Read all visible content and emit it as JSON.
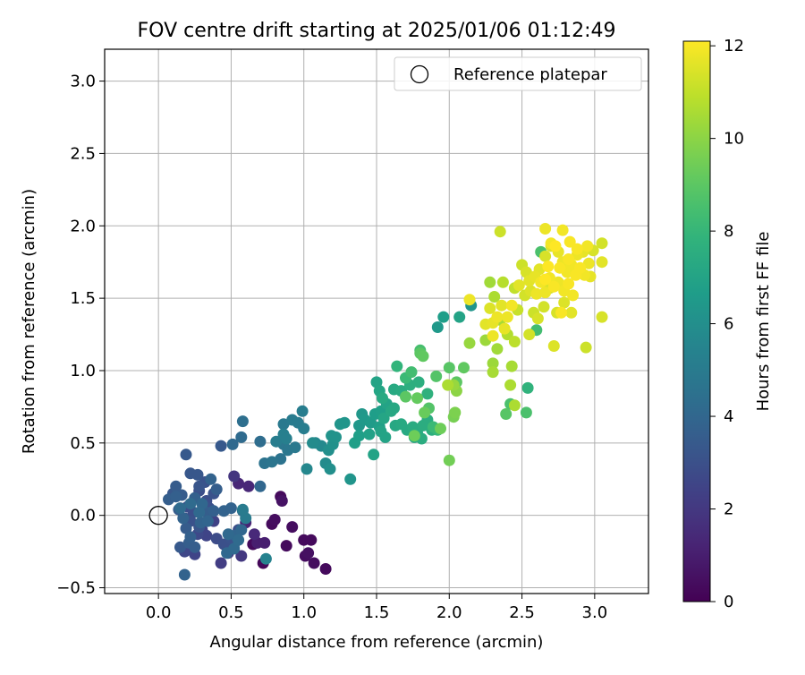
{
  "chart_data": {
    "type": "scatter",
    "title": "FOV centre drift starting at 2025/01/06 01:12:49",
    "xlabel": "Angular distance from reference (arcmin)",
    "ylabel": "Rotation from reference (arcmin)",
    "xlim": [
      -0.37,
      3.37
    ],
    "ylim": [
      -0.54,
      3.22
    ],
    "x_ticks": [
      0.0,
      0.5,
      1.0,
      1.5,
      2.0,
      2.5,
      3.0
    ],
    "x_tick_labels": [
      "0.0",
      "0.5",
      "1.0",
      "1.5",
      "2.0",
      "2.5",
      "3.0"
    ],
    "y_ticks": [
      -0.5,
      0.0,
      0.5,
      1.0,
      1.5,
      2.0,
      2.5,
      3.0
    ],
    "y_tick_labels": [
      "−0.5",
      "0.0",
      "0.5",
      "1.0",
      "1.5",
      "2.0",
      "2.5",
      "3.0"
    ],
    "grid": true,
    "legend": {
      "position": "top-right",
      "entries": [
        "Reference platepar"
      ]
    },
    "reference": {
      "label": "Reference platepar",
      "x": 0.0,
      "y": 0.0
    },
    "colorbar": {
      "label": "Hours from first FF file",
      "colormap": "viridis",
      "range": [
        0,
        12.1
      ],
      "ticks": [
        0,
        2,
        4,
        6,
        8,
        10,
        12
      ],
      "tick_labels": [
        "0",
        "2",
        "4",
        "6",
        "8",
        "10",
        "12"
      ]
    },
    "points": [
      [
        0.65,
        -0.2,
        0.3
      ],
      [
        0.72,
        -0.33,
        0.2
      ],
      [
        0.84,
        0.13,
        0.3
      ],
      [
        0.78,
        -0.06,
        0.3
      ],
      [
        0.8,
        -0.03,
        0.4
      ],
      [
        0.88,
        -0.21,
        0.3
      ],
      [
        0.92,
        -0.08,
        0.4
      ],
      [
        1.0,
        -0.17,
        0.3
      ],
      [
        1.05,
        -0.17,
        0.3
      ],
      [
        1.01,
        -0.28,
        0.4
      ],
      [
        1.03,
        -0.26,
        0.5
      ],
      [
        1.07,
        -0.33,
        0.4
      ],
      [
        1.15,
        -0.37,
        0.3
      ],
      [
        0.85,
        0.1,
        0.6
      ],
      [
        0.6,
        -0.05,
        1.2
      ],
      [
        0.55,
        0.22,
        1.3
      ],
      [
        0.62,
        0.2,
        1.3
      ],
      [
        0.68,
        -0.19,
        1.0
      ],
      [
        0.73,
        -0.19,
        1.0
      ],
      [
        0.66,
        -0.13,
        1.4
      ],
      [
        0.52,
        0.27,
        1.9
      ],
      [
        0.57,
        -0.28,
        2.0
      ],
      [
        0.43,
        -0.33,
        2.2
      ],
      [
        0.48,
        -0.26,
        2.1
      ],
      [
        0.25,
        -0.27,
        2.5
      ],
      [
        0.18,
        -0.25,
        2.6
      ],
      [
        0.3,
        -0.1,
        2.4
      ],
      [
        0.38,
        -0.04,
        2.4
      ],
      [
        0.33,
        -0.14,
        2.5
      ],
      [
        0.27,
        -0.13,
        2.7
      ],
      [
        0.4,
        -0.16,
        2.8
      ],
      [
        0.45,
        -0.2,
        3.0
      ],
      [
        0.5,
        -0.16,
        3.1
      ],
      [
        0.55,
        -0.1,
        3.0
      ],
      [
        0.52,
        -0.2,
        2.9
      ],
      [
        0.28,
        0.17,
        2.9
      ],
      [
        0.33,
        0.1,
        2.9
      ],
      [
        0.24,
        0.02,
        2.9
      ],
      [
        0.2,
        0.06,
        2.8
      ],
      [
        0.18,
        -0.02,
        3.0
      ],
      [
        0.22,
        -0.04,
        3.1
      ],
      [
        0.28,
        -0.08,
        3.2
      ],
      [
        0.35,
        0.05,
        3.0
      ],
      [
        0.38,
        0.15,
        3.1
      ],
      [
        0.32,
        0.23,
        3.1
      ],
      [
        0.27,
        0.28,
        3.3
      ],
      [
        0.22,
        0.29,
        3.3
      ],
      [
        0.19,
        0.42,
        3.4
      ],
      [
        0.43,
        0.48,
        3.4
      ],
      [
        0.28,
        0.2,
        3.2
      ],
      [
        0.1,
        0.15,
        3.3
      ],
      [
        0.07,
        0.11,
        3.6
      ],
      [
        0.12,
        0.2,
        3.5
      ],
      [
        0.16,
        0.14,
        3.5
      ],
      [
        0.14,
        0.04,
        3.5
      ],
      [
        0.19,
        -0.09,
        3.5
      ],
      [
        0.15,
        -0.22,
        3.4
      ],
      [
        0.21,
        -0.19,
        3.6
      ],
      [
        0.25,
        -0.22,
        3.6
      ],
      [
        0.33,
        0.02,
        3.6
      ],
      [
        0.38,
        0.03,
        3.7
      ],
      [
        0.4,
        0.18,
        3.6
      ],
      [
        0.36,
        0.25,
        3.8
      ],
      [
        0.25,
        0.12,
        3.7
      ],
      [
        0.12,
        0.13,
        3.7
      ],
      [
        0.17,
        -0.02,
        3.8
      ],
      [
        0.22,
        -0.15,
        3.7
      ],
      [
        0.29,
        -0.05,
        3.8
      ],
      [
        0.45,
        0.03,
        3.8
      ],
      [
        0.5,
        0.05,
        3.8
      ],
      [
        0.53,
        -0.14,
        3.9
      ],
      [
        0.57,
        -0.1,
        4.0
      ],
      [
        0.48,
        -0.13,
        4.1
      ],
      [
        0.58,
        0.03,
        4.2
      ],
      [
        0.55,
        -0.17,
        4.2
      ],
      [
        0.52,
        -0.23,
        4.1
      ],
      [
        0.47,
        -0.26,
        4.0
      ],
      [
        0.18,
        -0.41,
        3.8
      ],
      [
        0.3,
        0.08,
        4.0
      ],
      [
        0.22,
        0.08,
        4.2
      ],
      [
        0.15,
        0.05,
        4.2
      ],
      [
        0.28,
        0.02,
        4.1
      ],
      [
        0.34,
        -0.04,
        3.9
      ],
      [
        0.7,
        0.2,
        4.0
      ],
      [
        0.51,
        0.49,
        4.1
      ],
      [
        0.57,
        0.54,
        4.2
      ],
      [
        0.7,
        0.51,
        4.3
      ],
      [
        0.58,
        0.65,
        4.4
      ],
      [
        0.73,
        0.36,
        4.6
      ],
      [
        0.78,
        0.37,
        4.7
      ],
      [
        0.84,
        0.39,
        4.6
      ],
      [
        0.86,
        0.49,
        4.8
      ],
      [
        0.89,
        0.45,
        4.8
      ],
      [
        0.94,
        0.47,
        4.9
      ],
      [
        0.86,
        0.63,
        4.9
      ],
      [
        0.92,
        0.66,
        5.0
      ],
      [
        0.96,
        0.64,
        5.0
      ],
      [
        0.99,
        0.72,
        5.1
      ],
      [
        1.0,
        0.6,
        5.1
      ],
      [
        0.86,
        0.56,
        5.2
      ],
      [
        0.81,
        0.51,
        5.1
      ],
      [
        0.6,
        -0.02,
        5.0
      ],
      [
        0.58,
        0.04,
        5.0
      ],
      [
        0.74,
        -0.3,
        5.4
      ],
      [
        0.88,
        0.53,
        5.2
      ],
      [
        1.02,
        0.32,
        5.6
      ],
      [
        1.08,
        0.5,
        5.6
      ],
      [
        1.12,
        0.48,
        5.7
      ],
      [
        1.06,
        0.5,
        5.8
      ],
      [
        1.15,
        0.36,
        5.8
      ],
      [
        1.18,
        0.32,
        6.0
      ],
      [
        1.17,
        0.45,
        6.0
      ],
      [
        1.2,
        0.49,
        6.1
      ],
      [
        1.19,
        0.55,
        6.2
      ],
      [
        1.22,
        0.54,
        6.2
      ],
      [
        1.25,
        0.63,
        6.3
      ],
      [
        1.28,
        0.64,
        6.3
      ],
      [
        1.32,
        0.25,
        6.3
      ],
      [
        1.38,
        0.62,
        6.4
      ],
      [
        1.4,
        0.7,
        6.4
      ],
      [
        1.42,
        0.66,
        6.5
      ],
      [
        1.46,
        0.64,
        6.6
      ],
      [
        1.49,
        0.7,
        6.7
      ],
      [
        1.52,
        0.61,
        6.8
      ],
      [
        1.35,
        0.5,
        6.8
      ],
      [
        1.38,
        0.55,
        6.8
      ],
      [
        1.45,
        0.56,
        6.9
      ],
      [
        1.48,
        0.42,
        7.0
      ],
      [
        1.53,
        0.58,
        7.0
      ],
      [
        1.56,
        0.54,
        7.0
      ],
      [
        1.55,
        0.67,
        7.1
      ],
      [
        1.6,
        0.72,
        7.2
      ],
      [
        1.63,
        0.62,
        7.2
      ],
      [
        1.67,
        0.63,
        7.3
      ],
      [
        1.71,
        0.59,
        7.3
      ],
      [
        1.75,
        0.61,
        7.4
      ],
      [
        1.78,
        0.57,
        7.4
      ],
      [
        1.82,
        0.62,
        7.5
      ],
      [
        1.85,
        0.66,
        7.5
      ],
      [
        1.88,
        0.59,
        7.6
      ],
      [
        1.81,
        0.53,
        7.5
      ],
      [
        1.76,
        0.54,
        7.3
      ],
      [
        1.53,
        0.72,
        6.8
      ],
      [
        1.57,
        0.77,
        7.0
      ],
      [
        1.62,
        0.74,
        7.2
      ],
      [
        1.62,
        0.87,
        7.3
      ],
      [
        1.67,
        0.86,
        7.4
      ],
      [
        1.73,
        0.9,
        7.6
      ],
      [
        1.79,
        0.92,
        7.6
      ],
      [
        1.85,
        0.84,
        7.7
      ],
      [
        1.64,
        1.03,
        7.9
      ],
      [
        1.92,
        0.59,
        8.1
      ],
      [
        1.89,
        0.61,
        8.2
      ],
      [
        1.5,
        0.92,
        7.0
      ],
      [
        1.52,
        0.86,
        7.1
      ],
      [
        1.54,
        0.81,
        7.3
      ],
      [
        1.92,
        1.3,
        6.5
      ],
      [
        1.96,
        1.37,
        6.7
      ],
      [
        2.07,
        1.37,
        7.0
      ],
      [
        2.15,
        1.45,
        6.3
      ],
      [
        2.54,
        0.88,
        7.8
      ],
      [
        2.42,
        0.77,
        8.6
      ],
      [
        2.39,
        0.7,
        8.9
      ],
      [
        2.53,
        0.71,
        8.6
      ],
      [
        2.6,
        1.28,
        8.4
      ],
      [
        2.63,
        1.82,
        8.6
      ],
      [
        1.7,
        0.95,
        8.2
      ],
      [
        1.74,
        0.99,
        8.4
      ],
      [
        1.8,
        1.14,
        8.5
      ],
      [
        1.86,
        0.74,
        8.8
      ],
      [
        1.91,
        0.96,
        8.8
      ],
      [
        2.0,
        1.02,
        8.9
      ],
      [
        2.05,
        0.92,
        9.0
      ],
      [
        2.1,
        1.02,
        9.1
      ],
      [
        1.8,
        1.12,
        9.0
      ],
      [
        1.82,
        1.1,
        9.1
      ],
      [
        1.7,
        0.82,
        9.0
      ],
      [
        1.78,
        0.81,
        9.2
      ],
      [
        1.83,
        0.71,
        9.3
      ],
      [
        1.94,
        0.6,
        9.4
      ],
      [
        1.76,
        0.55,
        9.4
      ],
      [
        2.0,
        0.38,
        9.5
      ],
      [
        2.03,
        0.68,
        9.6
      ],
      [
        2.04,
        0.71,
        9.7
      ],
      [
        2.05,
        0.86,
        10.0
      ],
      [
        2.03,
        0.9,
        10.2
      ],
      [
        1.99,
        0.9,
        10.6
      ],
      [
        2.14,
        1.19,
        10.2
      ],
      [
        2.25,
        1.21,
        10.3
      ],
      [
        2.3,
        1.05,
        10.3
      ],
      [
        2.3,
        0.99,
        10.5
      ],
      [
        2.33,
        1.15,
        10.4
      ],
      [
        2.35,
        1.35,
        10.5
      ],
      [
        2.4,
        1.25,
        10.7
      ],
      [
        2.42,
        0.9,
        10.6
      ],
      [
        2.43,
        1.03,
        10.5
      ],
      [
        2.45,
        0.76,
        10.6
      ],
      [
        2.45,
        1.2,
        10.9
      ],
      [
        2.28,
        1.61,
        10.4
      ],
      [
        2.31,
        1.51,
        10.6
      ],
      [
        2.37,
        1.61,
        10.8
      ],
      [
        2.35,
        1.96,
        11.2
      ],
      [
        2.45,
        1.57,
        11.0
      ],
      [
        2.47,
        1.42,
        11.1
      ],
      [
        2.52,
        1.52,
        11.3
      ],
      [
        2.55,
        1.25,
        11.3
      ],
      [
        2.58,
        1.4,
        11.2
      ],
      [
        2.61,
        1.36,
        11.4
      ],
      [
        2.65,
        1.44,
        11.3
      ],
      [
        2.69,
        1.57,
        11.4
      ],
      [
        2.72,
        1.17,
        11.5
      ],
      [
        2.74,
        1.4,
        11.4
      ],
      [
        2.79,
        1.47,
        11.5
      ],
      [
        2.84,
        1.4,
        11.6
      ],
      [
        2.94,
        1.16,
        11.2
      ],
      [
        3.05,
        1.37,
        11.4
      ],
      [
        2.25,
        1.32,
        11.6
      ],
      [
        2.28,
        1.43,
        11.5
      ],
      [
        2.3,
        1.33,
        11.7
      ],
      [
        2.33,
        1.37,
        11.8
      ],
      [
        2.36,
        1.45,
        11.6
      ],
      [
        2.38,
        1.29,
        11.7
      ],
      [
        2.4,
        1.37,
        11.8
      ],
      [
        2.43,
        1.45,
        11.9
      ],
      [
        2.3,
        1.24,
        11.8
      ],
      [
        2.14,
        1.49,
        11.8
      ],
      [
        2.48,
        1.59,
        11.6
      ],
      [
        2.5,
        1.73,
        11.2
      ],
      [
        2.53,
        1.68,
        11.4
      ],
      [
        2.56,
        1.55,
        11.5
      ],
      [
        2.59,
        1.65,
        11.7
      ],
      [
        2.62,
        1.7,
        11.6
      ],
      [
        2.6,
        1.53,
        11.8
      ],
      [
        2.63,
        1.61,
        11.9
      ],
      [
        2.66,
        1.54,
        11.8
      ],
      [
        2.69,
        1.64,
        11.9
      ],
      [
        2.72,
        1.58,
        12.0
      ],
      [
        2.66,
        1.79,
        11.4
      ],
      [
        2.7,
        1.86,
        11.5
      ],
      [
        2.75,
        1.82,
        11.7
      ],
      [
        2.78,
        1.75,
        11.8
      ],
      [
        2.81,
        1.68,
        11.9
      ],
      [
        2.84,
        1.73,
        11.9
      ],
      [
        2.87,
        1.66,
        12.0
      ],
      [
        2.9,
        1.71,
        12.0
      ],
      [
        2.93,
        1.66,
        11.9
      ],
      [
        2.96,
        1.74,
        11.8
      ],
      [
        2.99,
        1.83,
        11.4
      ],
      [
        3.05,
        1.88,
        11.3
      ],
      [
        3.05,
        1.75,
        11.6
      ],
      [
        2.97,
        1.65,
        11.7
      ],
      [
        2.88,
        1.8,
        11.8
      ],
      [
        2.82,
        1.77,
        12.0
      ],
      [
        2.76,
        1.71,
        12.0
      ],
      [
        2.7,
        1.88,
        11.9
      ],
      [
        2.66,
        1.98,
        11.8
      ],
      [
        2.78,
        1.97,
        11.9
      ],
      [
        2.83,
        1.89,
        12.0
      ],
      [
        2.88,
        1.84,
        12.0
      ],
      [
        2.92,
        1.82,
        11.7
      ],
      [
        2.95,
        1.86,
        11.9
      ],
      [
        2.79,
        1.55,
        11.9
      ],
      [
        2.82,
        1.6,
        12.0
      ],
      [
        2.85,
        1.52,
        11.9
      ],
      [
        2.75,
        1.61,
        11.8
      ],
      [
        2.77,
        1.4,
        12.0
      ],
      [
        2.66,
        1.63,
        12.1
      ],
      [
        2.55,
        1.62,
        11.6
      ],
      [
        2.68,
        1.72,
        12.1
      ],
      [
        2.73,
        1.86,
        12.1
      ]
    ]
  }
}
